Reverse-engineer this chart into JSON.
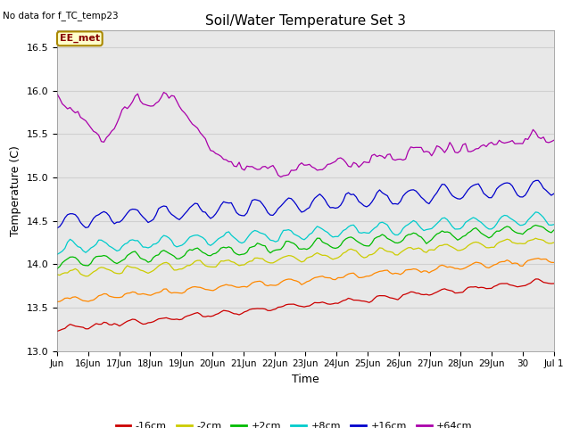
{
  "title": "Soil/Water Temperature Set 3",
  "xlabel": "Time",
  "ylabel": "Temperature (C)",
  "subtitle": "No data for f_TC_temp23",
  "annotation": "EE_met",
  "ylim": [
    13.0,
    16.7
  ],
  "xtick_labels": [
    "Jun",
    "16Jun",
    "17Jun",
    "18Jun",
    "19Jun",
    "20Jun",
    "21Jun",
    "22Jun",
    "23Jun",
    "24Jun",
    "25Jun",
    "26Jun",
    "27Jun",
    "28Jun",
    "29Jun",
    "30",
    "Jul 1"
  ],
  "series": {
    "-16cm": {
      "color": "#cc0000",
      "base": 13.25,
      "trend": 0.035,
      "amp": 0.025,
      "noise": 0.012
    },
    "-8cm": {
      "color": "#ff8800",
      "base": 13.58,
      "trend": 0.03,
      "amp": 0.03,
      "noise": 0.013
    },
    "-2cm": {
      "color": "#cccc00",
      "base": 13.88,
      "trend": 0.025,
      "amp": 0.04,
      "noise": 0.015
    },
    "+2cm": {
      "color": "#00bb00",
      "base": 14.02,
      "trend": 0.025,
      "amp": 0.055,
      "noise": 0.018
    },
    "+8cm": {
      "color": "#00cccc",
      "base": 14.18,
      "trend": 0.022,
      "amp": 0.065,
      "noise": 0.018
    },
    "+16cm": {
      "color": "#0000cc",
      "base": 14.5,
      "trend": 0.025,
      "amp": 0.09,
      "noise": 0.02
    },
    "+64cm": {
      "color": "#aa00aa",
      "base": 0,
      "trend": 0,
      "amp": 0,
      "noise": 0
    }
  },
  "bg_color": "#ffffff",
  "grid_color": "#d0d0d0",
  "plot_bg": "#e8e8e8"
}
